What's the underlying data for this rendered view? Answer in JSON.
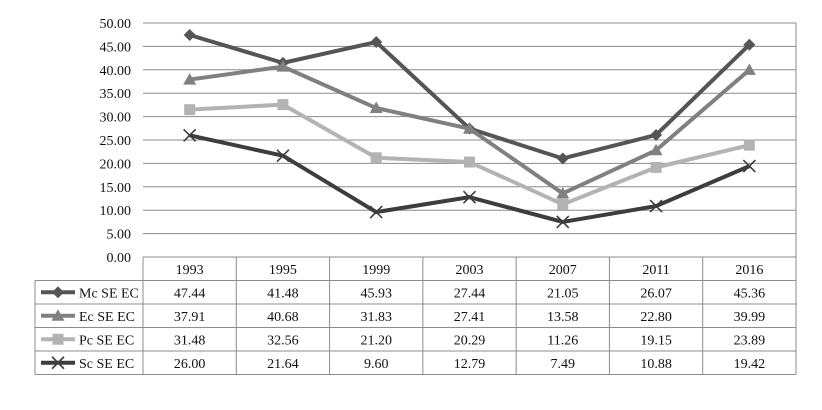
{
  "chart_data": {
    "type": "line",
    "categories": [
      "1993",
      "1995",
      "1999",
      "2003",
      "2007",
      "2011",
      "2016"
    ],
    "ylim": [
      0,
      50
    ],
    "yticks": [
      "0.00",
      "5.00",
      "10.00",
      "15.00",
      "20.00",
      "25.00",
      "30.00",
      "35.00",
      "40.00",
      "45.00",
      "50.00"
    ],
    "grid": true,
    "legend": "data-table-below",
    "series": [
      {
        "name": "Mc SE EC",
        "marker": "diamond",
        "color": "#555555",
        "values": [
          47.44,
          41.48,
          45.93,
          27.44,
          21.05,
          26.07,
          45.36
        ],
        "labels": [
          "47.44",
          "41.48",
          "45.93",
          "27.44",
          "21.05",
          "26.07",
          "45.36"
        ]
      },
      {
        "name": "Ec SE EC",
        "marker": "triangle",
        "color": "#808080",
        "values": [
          37.91,
          40.68,
          31.83,
          27.41,
          13.58,
          22.8,
          39.99
        ],
        "labels": [
          "37.91",
          "40.68",
          "31.83",
          "27.41",
          "13.58",
          "22.80",
          "39.99"
        ]
      },
      {
        "name": "Pc SE EC",
        "marker": "square",
        "color": "#b3b3b3",
        "values": [
          31.48,
          32.56,
          21.2,
          20.29,
          11.26,
          19.15,
          23.89
        ],
        "labels": [
          "31.48",
          "32.56",
          "21.20",
          "20.29",
          "11.26",
          "19.15",
          "23.89"
        ]
      },
      {
        "name": "Sc SE EC",
        "marker": "x",
        "color": "#3d3d3d",
        "values": [
          26.0,
          21.64,
          9.6,
          12.79,
          7.49,
          10.88,
          19.42
        ],
        "labels": [
          "26.00",
          "21.64",
          "9.60",
          "12.79",
          "7.49",
          "10.88",
          "19.42"
        ]
      }
    ]
  }
}
